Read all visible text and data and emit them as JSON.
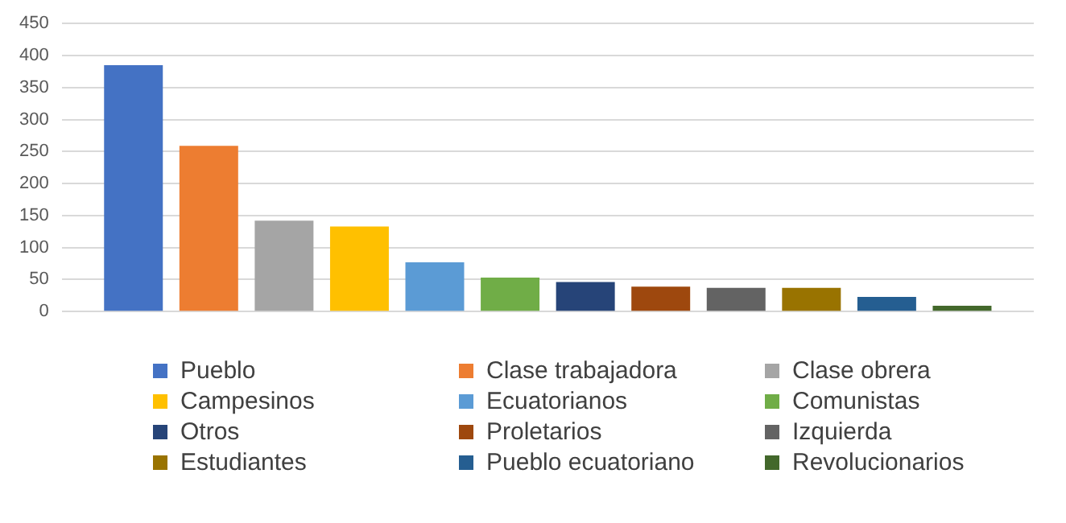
{
  "chart_data": {
    "type": "bar",
    "categories": [
      null
    ],
    "ylim": [
      0,
      450
    ],
    "yticks": [
      0,
      50,
      100,
      150,
      200,
      250,
      300,
      350,
      400,
      450
    ],
    "grid": "y",
    "legend": "bottom",
    "series": [
      {
        "name": "Pueblo",
        "color": "#4472c4",
        "values": [
          385
        ]
      },
      {
        "name": "Clase trabajadora",
        "color": "#ed7d31",
        "values": [
          259
        ]
      },
      {
        "name": "Clase obrera",
        "color": "#a5a5a5",
        "values": [
          142
        ]
      },
      {
        "name": "Campesinos",
        "color": "#ffc000",
        "values": [
          133
        ]
      },
      {
        "name": "Ecuatorianos",
        "color": "#5b9bd5",
        "values": [
          77
        ]
      },
      {
        "name": "Comunistas",
        "color": "#70ad47",
        "values": [
          53
        ]
      },
      {
        "name": "Otros",
        "color": "#264478",
        "values": [
          46
        ]
      },
      {
        "name": "Proletarios",
        "color": "#9e480e",
        "values": [
          39
        ]
      },
      {
        "name": "Izquierda",
        "color": "#636363",
        "values": [
          37
        ]
      },
      {
        "name": "Estudiantes",
        "color": "#997300",
        "values": [
          37
        ]
      },
      {
        "name": "Pueblo ecuatoriano",
        "color": "#255e91",
        "values": [
          23
        ]
      },
      {
        "name": "Revolucionarios",
        "color": "#43682b",
        "values": [
          9
        ]
      }
    ]
  }
}
